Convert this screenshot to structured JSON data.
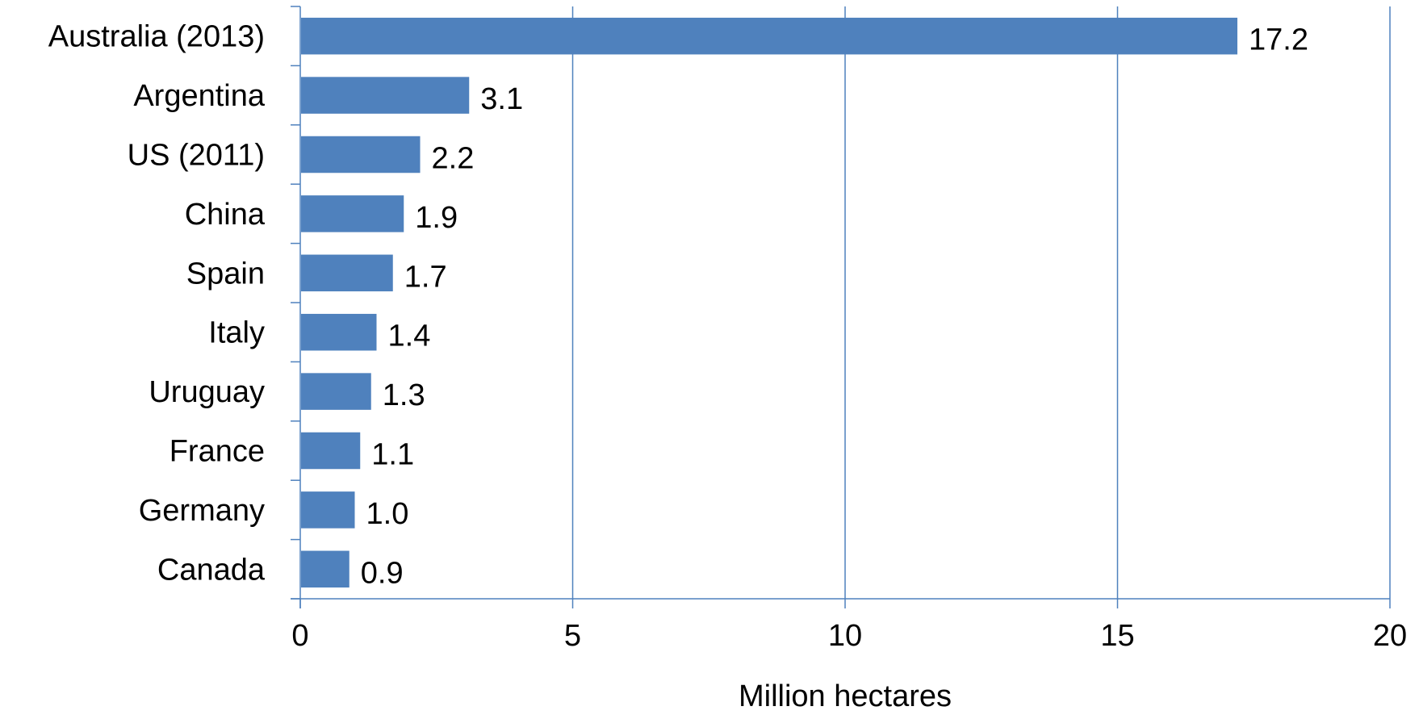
{
  "chart_data": {
    "type": "bar",
    "orientation": "horizontal",
    "categories": [
      "Australia (2013)",
      "Argentina",
      "US (2011)",
      "China",
      "Spain",
      "Italy",
      "Uruguay",
      "France",
      "Germany",
      "Canada"
    ],
    "values": [
      17.2,
      3.1,
      2.2,
      1.9,
      1.7,
      1.4,
      1.3,
      1.1,
      1.0,
      0.9
    ],
    "value_labels": [
      "17.2",
      "3.1",
      "2.2",
      "1.9",
      "1.7",
      "1.4",
      "1.3",
      "1.1",
      "1.0",
      "0.9"
    ],
    "title": "",
    "xlabel": "Million hectares",
    "ylabel": "",
    "xlim": [
      0,
      20
    ],
    "x_ticks": [
      0,
      5,
      10,
      15,
      20
    ],
    "grid": "vertical",
    "legend": "none",
    "colors": {
      "bar": "#4f81bd",
      "grid": "#4f81bd",
      "axis": "#4f81bd",
      "text": "#000000"
    }
  }
}
